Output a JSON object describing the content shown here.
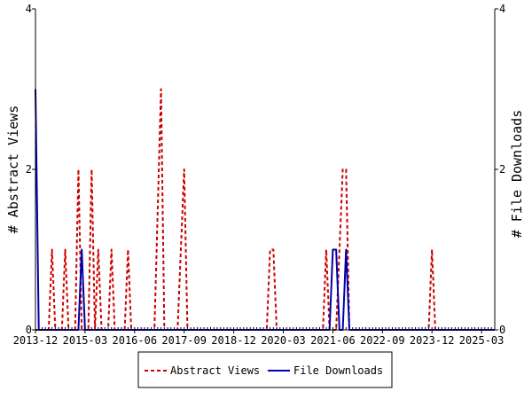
{
  "chart_data": {
    "type": "line",
    "ylabel_left": "# Abstract Views",
    "ylabel_right": "# File Downloads",
    "y_left_ticks": [
      "0",
      "2",
      "4"
    ],
    "y_right_ticks": [
      "0",
      "2",
      "4"
    ],
    "ylim": [
      0,
      4
    ],
    "x_tick_labels": [
      "2013-12",
      "2015-03",
      "2016-06",
      "2017-09",
      "2018-12",
      "2020-03",
      "2021-06",
      "2022-09",
      "2023-12",
      "2025-03"
    ],
    "x_start": "2013-12",
    "x_end": "2025-07",
    "grid": false,
    "legend_position": "bottom",
    "colors": {
      "abstract_views": "#cc0000",
      "file_downloads": "#0000aa"
    },
    "series": [
      {
        "name": "Abstract Views",
        "style": "dashed",
        "points": [
          [
            "2013-12",
            0
          ],
          [
            "2014-04",
            0
          ],
          [
            "2014-05",
            1
          ],
          [
            "2014-06",
            0
          ],
          [
            "2014-08",
            0
          ],
          [
            "2014-09",
            1
          ],
          [
            "2014-10",
            0
          ],
          [
            "2014-12",
            0
          ],
          [
            "2015-01",
            2
          ],
          [
            "2015-02",
            0
          ],
          [
            "2015-04",
            0
          ],
          [
            "2015-05",
            2
          ],
          [
            "2015-06",
            0
          ],
          [
            "2015-07",
            1
          ],
          [
            "2015-08",
            0
          ],
          [
            "2015-10",
            0
          ],
          [
            "2015-11",
            1
          ],
          [
            "2015-12",
            0
          ],
          [
            "2016-03",
            0
          ],
          [
            "2016-04",
            1
          ],
          [
            "2016-05",
            0
          ],
          [
            "2016-12",
            0
          ],
          [
            "2017-02",
            3
          ],
          [
            "2017-03",
            0
          ],
          [
            "2017-07",
            0
          ],
          [
            "2017-09",
            2
          ],
          [
            "2017-10",
            0
          ],
          [
            "2019-10",
            0
          ],
          [
            "2019-11",
            1
          ],
          [
            "2019-12",
            1
          ],
          [
            "2020-01",
            0
          ],
          [
            "2021-03",
            0
          ],
          [
            "2021-04",
            1
          ],
          [
            "2021-05",
            0
          ],
          [
            "2021-07",
            0
          ],
          [
            "2021-09",
            2
          ],
          [
            "2021-10",
            2
          ],
          [
            "2021-11",
            0
          ],
          [
            "2023-11",
            0
          ],
          [
            "2023-12",
            1
          ],
          [
            "2024-01",
            0
          ],
          [
            "2025-07",
            0
          ]
        ]
      },
      {
        "name": "File Downloads",
        "style": "solid",
        "points": [
          [
            "2013-12",
            3
          ],
          [
            "2014-01",
            0
          ],
          [
            "2015-01",
            0
          ],
          [
            "2015-02",
            1
          ],
          [
            "2015-03",
            0
          ],
          [
            "2021-05",
            0
          ],
          [
            "2021-06",
            1
          ],
          [
            "2021-07",
            1
          ],
          [
            "2021-08",
            0
          ],
          [
            "2021-09",
            0
          ],
          [
            "2021-10",
            1
          ],
          [
            "2021-11",
            0
          ],
          [
            "2025-07",
            0
          ]
        ]
      }
    ]
  }
}
